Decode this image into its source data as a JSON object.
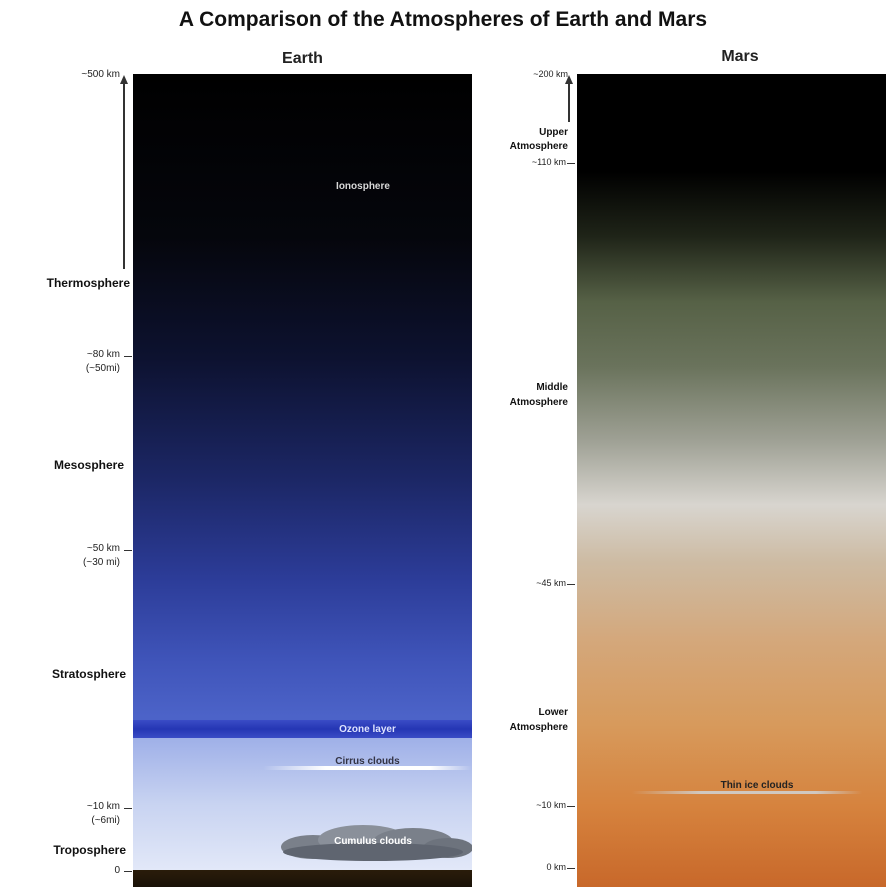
{
  "title": "A Comparison of the Atmospheres of Earth and Mars",
  "earth": {
    "panel_title": "Earth",
    "altitude_labels": {
      "top": "~500 km",
      "mesopause": "~80 km",
      "mesopause_mi": "(~50mi)",
      "stratopause": "~50 km",
      "stratopause_mi": "(~30 mi)",
      "tropopause": "~10 km",
      "tropopause_mi": "(~6mi)",
      "ground": "0"
    },
    "layers": {
      "thermosphere": "Thermosphere",
      "mesosphere": "Mesosphere",
      "stratosphere": "Stratosphere",
      "troposphere": "Troposphere"
    },
    "features": {
      "ionosphere": "Ionosphere",
      "ozone": "Ozone layer",
      "cirrus": "Cirrus clouds",
      "cumulus": "Cumulus clouds"
    }
  },
  "mars": {
    "panel_title": "Mars",
    "altitude_labels": {
      "top": "~200 km",
      "upper_bound": "~110 km",
      "middle_bound": "~45 km",
      "low": "~10 km",
      "ground": "0 km"
    },
    "layers": {
      "upper_line1": "Upper",
      "upper_line2": "Atmosphere",
      "middle_line1": "Middle",
      "middle_line2": "Atmosphere",
      "lower_line1": "Lower",
      "lower_line2": "Atmosphere"
    },
    "features": {
      "thin_ice": "Thin ice clouds"
    }
  }
}
